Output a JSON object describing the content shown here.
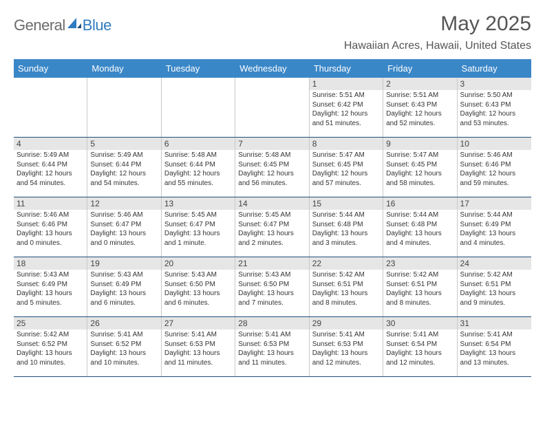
{
  "logo": {
    "text1": "General",
    "text2": "Blue"
  },
  "title": "May 2025",
  "location": "Hawaiian Acres, Hawaii, United States",
  "colors": {
    "header_bg": "#3a87c8",
    "header_text": "#ffffff",
    "day_band_bg": "#e6e6e6",
    "week_border": "#1f4e79",
    "logo_gray": "#6b6b6b",
    "logo_blue": "#2f7bbf"
  },
  "day_headers": [
    "Sunday",
    "Monday",
    "Tuesday",
    "Wednesday",
    "Thursday",
    "Friday",
    "Saturday"
  ],
  "weeks": [
    [
      {
        "empty": true
      },
      {
        "empty": true
      },
      {
        "empty": true
      },
      {
        "empty": true
      },
      {
        "num": "1",
        "sunrise": "Sunrise: 5:51 AM",
        "sunset": "Sunset: 6:42 PM",
        "d1": "Daylight: 12 hours",
        "d2": "and 51 minutes."
      },
      {
        "num": "2",
        "sunrise": "Sunrise: 5:51 AM",
        "sunset": "Sunset: 6:43 PM",
        "d1": "Daylight: 12 hours",
        "d2": "and 52 minutes."
      },
      {
        "num": "3",
        "sunrise": "Sunrise: 5:50 AM",
        "sunset": "Sunset: 6:43 PM",
        "d1": "Daylight: 12 hours",
        "d2": "and 53 minutes."
      }
    ],
    [
      {
        "num": "4",
        "sunrise": "Sunrise: 5:49 AM",
        "sunset": "Sunset: 6:44 PM",
        "d1": "Daylight: 12 hours",
        "d2": "and 54 minutes."
      },
      {
        "num": "5",
        "sunrise": "Sunrise: 5:49 AM",
        "sunset": "Sunset: 6:44 PM",
        "d1": "Daylight: 12 hours",
        "d2": "and 54 minutes."
      },
      {
        "num": "6",
        "sunrise": "Sunrise: 5:48 AM",
        "sunset": "Sunset: 6:44 PM",
        "d1": "Daylight: 12 hours",
        "d2": "and 55 minutes."
      },
      {
        "num": "7",
        "sunrise": "Sunrise: 5:48 AM",
        "sunset": "Sunset: 6:45 PM",
        "d1": "Daylight: 12 hours",
        "d2": "and 56 minutes."
      },
      {
        "num": "8",
        "sunrise": "Sunrise: 5:47 AM",
        "sunset": "Sunset: 6:45 PM",
        "d1": "Daylight: 12 hours",
        "d2": "and 57 minutes."
      },
      {
        "num": "9",
        "sunrise": "Sunrise: 5:47 AM",
        "sunset": "Sunset: 6:45 PM",
        "d1": "Daylight: 12 hours",
        "d2": "and 58 minutes."
      },
      {
        "num": "10",
        "sunrise": "Sunrise: 5:46 AM",
        "sunset": "Sunset: 6:46 PM",
        "d1": "Daylight: 12 hours",
        "d2": "and 59 minutes."
      }
    ],
    [
      {
        "num": "11",
        "sunrise": "Sunrise: 5:46 AM",
        "sunset": "Sunset: 6:46 PM",
        "d1": "Daylight: 13 hours",
        "d2": "and 0 minutes."
      },
      {
        "num": "12",
        "sunrise": "Sunrise: 5:46 AM",
        "sunset": "Sunset: 6:47 PM",
        "d1": "Daylight: 13 hours",
        "d2": "and 0 minutes."
      },
      {
        "num": "13",
        "sunrise": "Sunrise: 5:45 AM",
        "sunset": "Sunset: 6:47 PM",
        "d1": "Daylight: 13 hours",
        "d2": "and 1 minute."
      },
      {
        "num": "14",
        "sunrise": "Sunrise: 5:45 AM",
        "sunset": "Sunset: 6:47 PM",
        "d1": "Daylight: 13 hours",
        "d2": "and 2 minutes."
      },
      {
        "num": "15",
        "sunrise": "Sunrise: 5:44 AM",
        "sunset": "Sunset: 6:48 PM",
        "d1": "Daylight: 13 hours",
        "d2": "and 3 minutes."
      },
      {
        "num": "16",
        "sunrise": "Sunrise: 5:44 AM",
        "sunset": "Sunset: 6:48 PM",
        "d1": "Daylight: 13 hours",
        "d2": "and 4 minutes."
      },
      {
        "num": "17",
        "sunrise": "Sunrise: 5:44 AM",
        "sunset": "Sunset: 6:49 PM",
        "d1": "Daylight: 13 hours",
        "d2": "and 4 minutes."
      }
    ],
    [
      {
        "num": "18",
        "sunrise": "Sunrise: 5:43 AM",
        "sunset": "Sunset: 6:49 PM",
        "d1": "Daylight: 13 hours",
        "d2": "and 5 minutes."
      },
      {
        "num": "19",
        "sunrise": "Sunrise: 5:43 AM",
        "sunset": "Sunset: 6:49 PM",
        "d1": "Daylight: 13 hours",
        "d2": "and 6 minutes."
      },
      {
        "num": "20",
        "sunrise": "Sunrise: 5:43 AM",
        "sunset": "Sunset: 6:50 PM",
        "d1": "Daylight: 13 hours",
        "d2": "and 6 minutes."
      },
      {
        "num": "21",
        "sunrise": "Sunrise: 5:43 AM",
        "sunset": "Sunset: 6:50 PM",
        "d1": "Daylight: 13 hours",
        "d2": "and 7 minutes."
      },
      {
        "num": "22",
        "sunrise": "Sunrise: 5:42 AM",
        "sunset": "Sunset: 6:51 PM",
        "d1": "Daylight: 13 hours",
        "d2": "and 8 minutes."
      },
      {
        "num": "23",
        "sunrise": "Sunrise: 5:42 AM",
        "sunset": "Sunset: 6:51 PM",
        "d1": "Daylight: 13 hours",
        "d2": "and 8 minutes."
      },
      {
        "num": "24",
        "sunrise": "Sunrise: 5:42 AM",
        "sunset": "Sunset: 6:51 PM",
        "d1": "Daylight: 13 hours",
        "d2": "and 9 minutes."
      }
    ],
    [
      {
        "num": "25",
        "sunrise": "Sunrise: 5:42 AM",
        "sunset": "Sunset: 6:52 PM",
        "d1": "Daylight: 13 hours",
        "d2": "and 10 minutes."
      },
      {
        "num": "26",
        "sunrise": "Sunrise: 5:41 AM",
        "sunset": "Sunset: 6:52 PM",
        "d1": "Daylight: 13 hours",
        "d2": "and 10 minutes."
      },
      {
        "num": "27",
        "sunrise": "Sunrise: 5:41 AM",
        "sunset": "Sunset: 6:53 PM",
        "d1": "Daylight: 13 hours",
        "d2": "and 11 minutes."
      },
      {
        "num": "28",
        "sunrise": "Sunrise: 5:41 AM",
        "sunset": "Sunset: 6:53 PM",
        "d1": "Daylight: 13 hours",
        "d2": "and 11 minutes."
      },
      {
        "num": "29",
        "sunrise": "Sunrise: 5:41 AM",
        "sunset": "Sunset: 6:53 PM",
        "d1": "Daylight: 13 hours",
        "d2": "and 12 minutes."
      },
      {
        "num": "30",
        "sunrise": "Sunrise: 5:41 AM",
        "sunset": "Sunset: 6:54 PM",
        "d1": "Daylight: 13 hours",
        "d2": "and 12 minutes."
      },
      {
        "num": "31",
        "sunrise": "Sunrise: 5:41 AM",
        "sunset": "Sunset: 6:54 PM",
        "d1": "Daylight: 13 hours",
        "d2": "and 13 minutes."
      }
    ]
  ]
}
